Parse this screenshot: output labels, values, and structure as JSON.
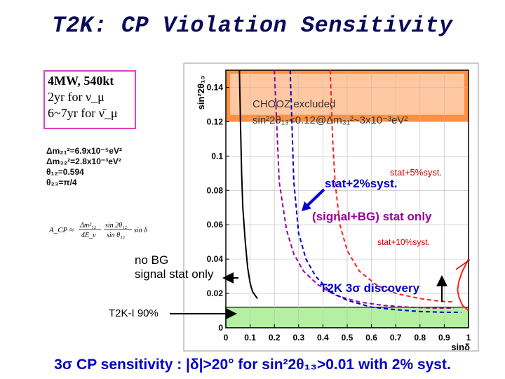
{
  "title": "T2K: CP Violation Sensitivity",
  "info_box": {
    "line1": "4MW, 540kt",
    "line2": "2yr for ν_μ",
    "line3": "6~7yr for ν̄_μ"
  },
  "params": {
    "dm21": "Δm₂₁²=6.9x10⁻⁵eV²",
    "dm32": "Δm₃₂²=2.8x10⁻³eV²",
    "th12": "θ₁₂=0.594",
    "th23": "θ₂₃=π/4"
  },
  "formula": {
    "lhs": "A_CP ≈",
    "term1_num": "Δm²₁₂",
    "term1_den": "4E_ν",
    "term2_num": "sin 2θ₁₂",
    "term2_den": "sin θ₁₃",
    "tail": "sin δ"
  },
  "labels": {
    "chooz_line1": "CHOOZ excluded",
    "chooz_line2": "sin²2θ₁₃<0.12@Δm₃₁²~3x10⁻³eV²",
    "stat2": "stat+2%syst.",
    "stat5": "stat+5%syst.",
    "sigbg": "(signal+BG) stat only",
    "stat10": "stat+10%syst.",
    "nobg_line1": "no BG",
    "nobg_line2": "signal stat only",
    "discovery": "T2K 3σ discovery",
    "t2k90": "T2K-I 90%"
  },
  "bottom_text": "3σ CP sensitivity : |δ|>20° for sin²2θ₁₃>0.01 with 2% syst.",
  "chart_data": {
    "type": "line",
    "title": "",
    "xlabel": "sinδ",
    "ylabel": "sin²2θ₁₃",
    "xlim": [
      0,
      1
    ],
    "ylim": [
      0,
      0.15
    ],
    "xticks": [
      "0",
      "0.1",
      "0.2",
      "0.3",
      "0.4",
      "0.5",
      "0.6",
      "0.7",
      "0.8",
      "0.9",
      "1"
    ],
    "yticks": [
      "0",
      "0.02",
      "0.04",
      "0.06",
      "0.08",
      "0.1",
      "0.12",
      "0.14"
    ],
    "regions": [
      {
        "name": "CHOOZ excluded",
        "y_min": 0.12,
        "y_max": 0.15,
        "color": "#ff9040"
      },
      {
        "name": "T2K-I 90%",
        "y_min": 0.0,
        "y_max": 0.012,
        "color": "#b4f0a0"
      }
    ],
    "series": [
      {
        "name": "no BG signal stat only",
        "color": "#000000",
        "style": "solid",
        "x": [
          0.056,
          0.06,
          0.065,
          0.07,
          0.08,
          0.09,
          0.1,
          0.11,
          0.13
        ],
        "y": [
          0.15,
          0.12,
          0.09,
          0.07,
          0.05,
          0.035,
          0.026,
          0.021,
          0.017
        ]
      },
      {
        "name": "(signal+BG) stat only",
        "color": "#9a009a",
        "style": "dashed",
        "x": [
          0.2,
          0.22,
          0.25,
          0.28,
          0.32,
          0.38,
          0.45,
          0.55,
          0.65,
          0.75,
          0.85,
          0.94
        ],
        "y": [
          0.15,
          0.085,
          0.057,
          0.043,
          0.033,
          0.025,
          0.019,
          0.015,
          0.013,
          0.012,
          0.0115,
          0.0115
        ]
      },
      {
        "name": "stat+2%syst.",
        "color": "#0000c8",
        "style": "dashed",
        "x": [
          0.265,
          0.28,
          0.3,
          0.33,
          0.37,
          0.43,
          0.5,
          0.6,
          0.7,
          0.8,
          0.9,
          0.97
        ],
        "y": [
          0.15,
          0.085,
          0.055,
          0.04,
          0.03,
          0.021,
          0.016,
          0.012,
          0.0105,
          0.0095,
          0.009,
          0.009
        ]
      },
      {
        "name": "stat+5%syst.",
        "color": "#ff2020",
        "style": "dashed",
        "x": [
          0.43,
          0.44,
          0.45,
          0.47,
          0.5,
          0.55,
          0.62,
          0.7,
          0.8,
          0.88,
          0.94
        ],
        "y": [
          0.15,
          0.11,
          0.085,
          0.06,
          0.045,
          0.033,
          0.025,
          0.02,
          0.017,
          0.0155,
          0.015
        ]
      },
      {
        "name": "stat+10%syst.",
        "color": "#ff2020",
        "style": "solid",
        "x": [
          1.0,
          0.975,
          0.96,
          0.955,
          0.96,
          0.975,
          1.0
        ],
        "y": [
          0.04,
          0.033,
          0.027,
          0.022,
          0.018,
          0.013,
          0.01
        ]
      }
    ]
  }
}
